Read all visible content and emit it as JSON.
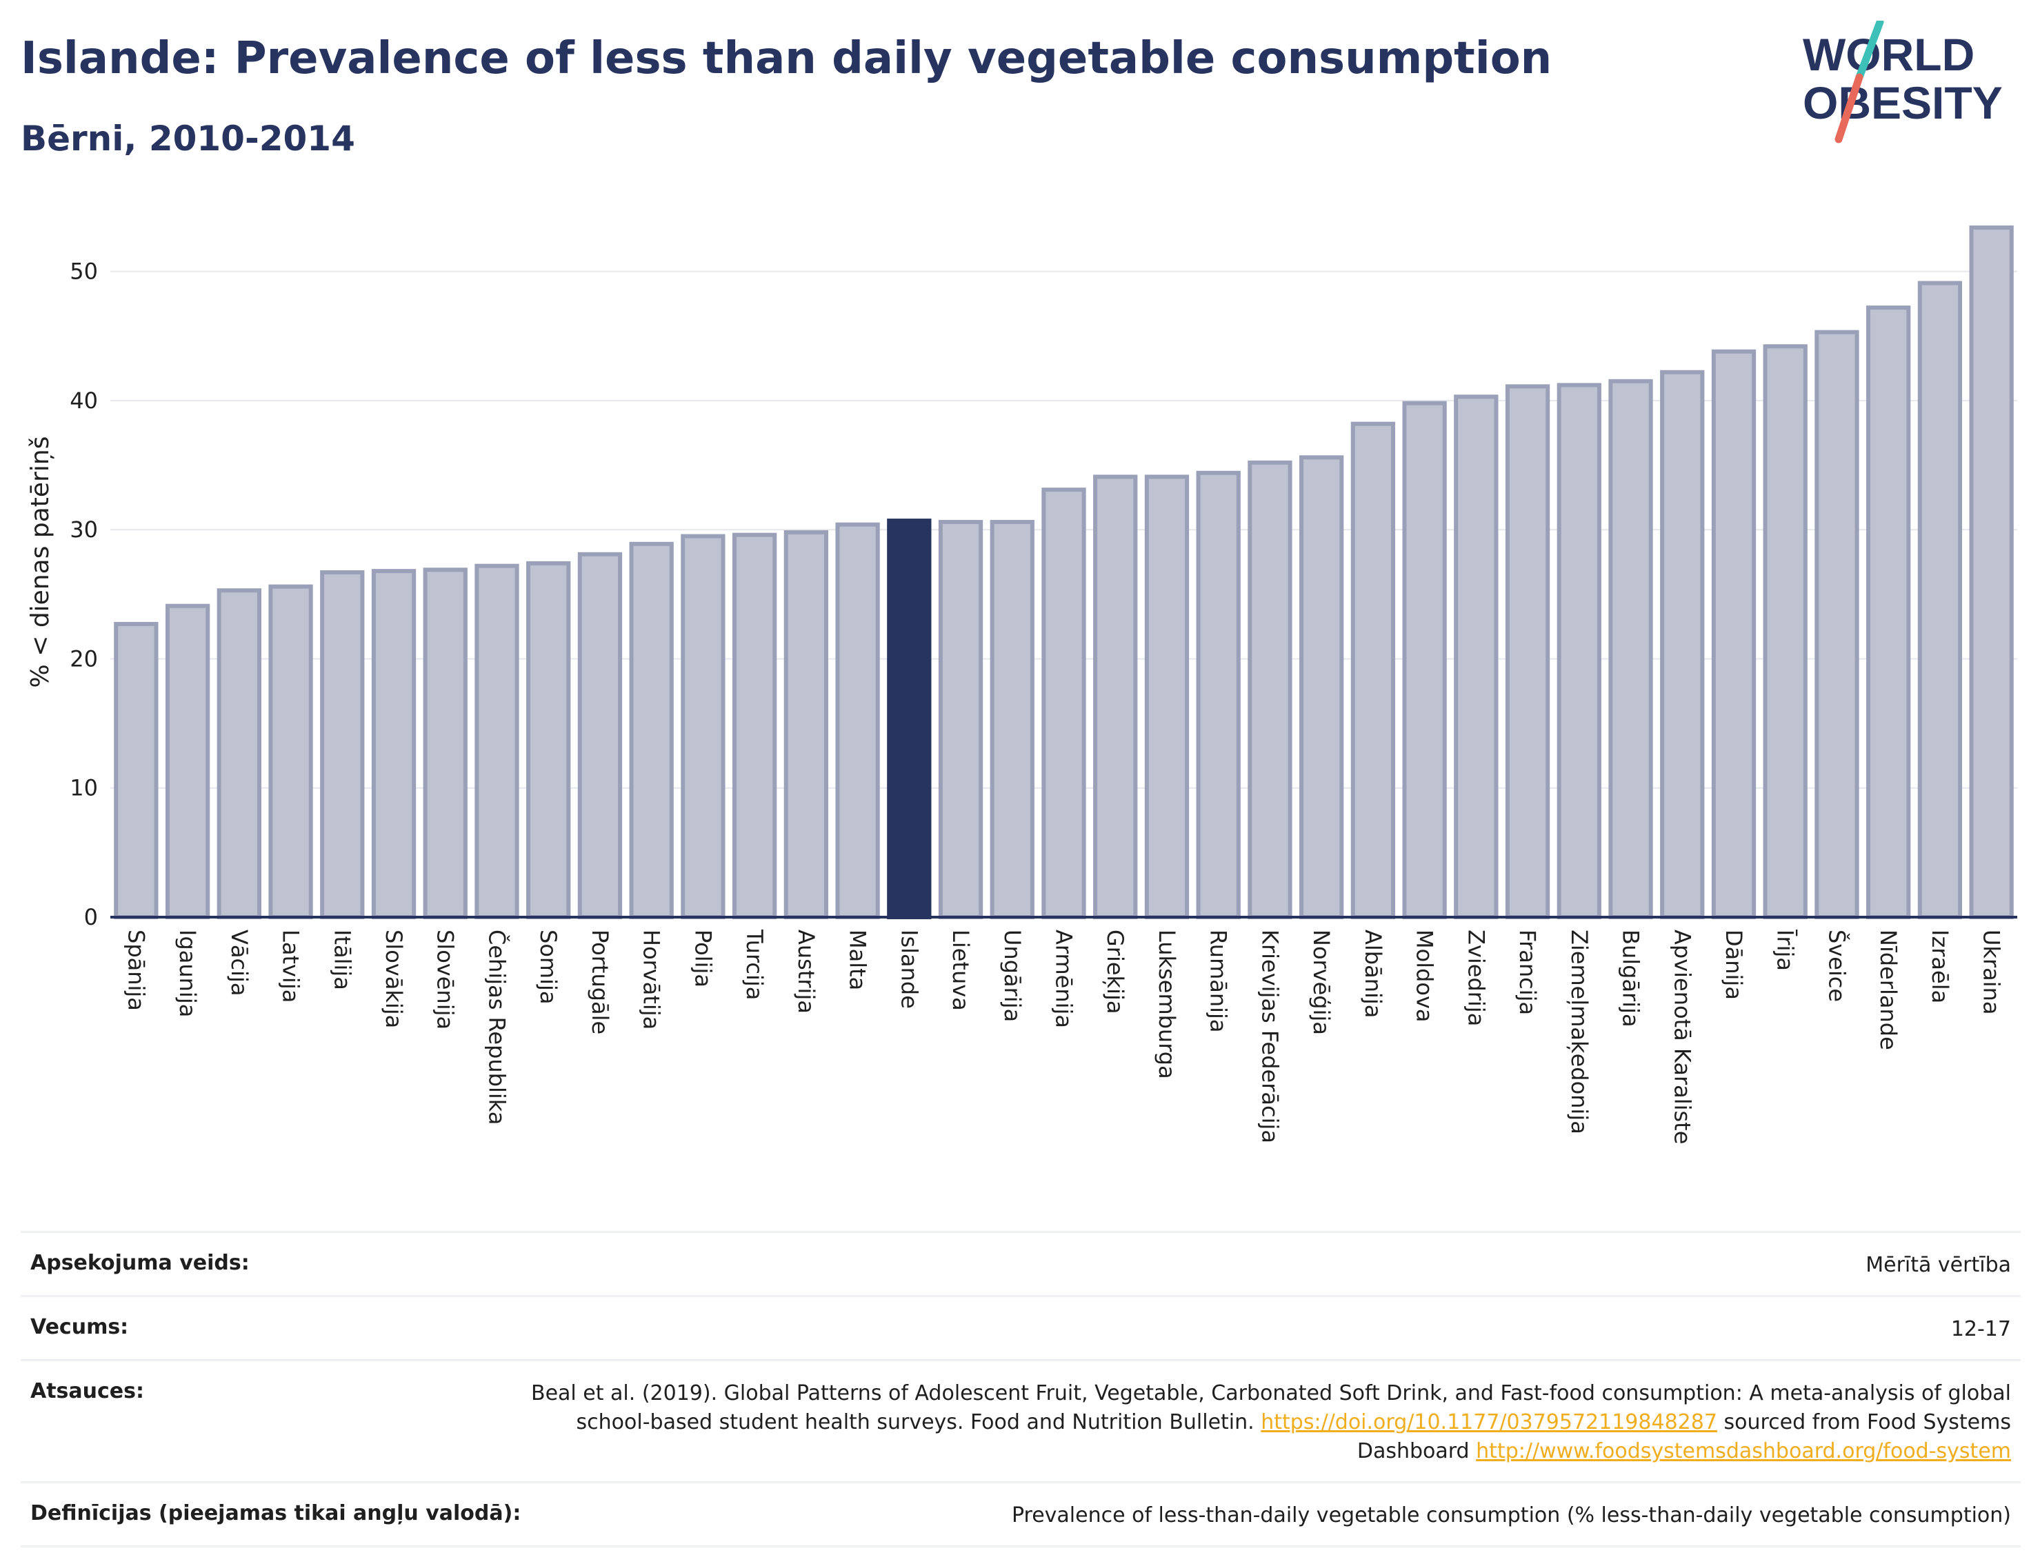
{
  "header": {
    "title": "Islande: Prevalence of less than daily vegetable consumption",
    "subtitle": "Bērni, 2010-2014"
  },
  "logo": {
    "line1": "WORLD",
    "line2": "OBESITY",
    "colors": {
      "text": "#283460",
      "slash_top": "#3cc0b8",
      "slash_bottom": "#e8685a"
    }
  },
  "chart_data": {
    "type": "bar",
    "ylabel": "% < dienas patēriņš",
    "ylim": [
      0,
      55
    ],
    "yticks": [
      0,
      10,
      20,
      30,
      40,
      50
    ],
    "grid": true,
    "highlight": "Islande",
    "colors": {
      "bar": "#bfc3d1",
      "bar_border": "#9aa0b8",
      "highlight": "#283460"
    },
    "categories": [
      "Spānija",
      "Igaunija",
      "Vācija",
      "Latvija",
      "Itālija",
      "Slovākija",
      "Slovēnija",
      "Čehijas Republika",
      "Somija",
      "Portugāle",
      "Horvātija",
      "Polija",
      "Turcija",
      "Austrija",
      "Malta",
      "Islande",
      "Lietuva",
      "Ungārija",
      "Armēnija",
      "Grieķija",
      "Luksemburga",
      "Rumānija",
      "Krievijas Federācija",
      "Norvēģija",
      "Albānija",
      "Moldova",
      "Zviedrija",
      "Francija",
      "Ziemeļmaķedonija",
      "Bulgārija",
      "Apvienotā Karaliste",
      "Dānija",
      "Īrija",
      "Šveice",
      "Nīderlande",
      "Izraēla",
      "Ukraina"
    ],
    "values": [
      22.7,
      24.1,
      25.3,
      25.6,
      26.7,
      26.8,
      26.9,
      27.2,
      27.4,
      28.1,
      28.9,
      29.5,
      29.6,
      29.8,
      30.4,
      30.7,
      30.6,
      30.6,
      33.1,
      34.1,
      34.1,
      34.4,
      35.2,
      35.6,
      38.2,
      39.8,
      40.3,
      41.1,
      41.2,
      41.5,
      42.2,
      43.8,
      44.2,
      45.3,
      47.2,
      49.1,
      53.4
    ]
  },
  "meta": {
    "rows": [
      {
        "label": "Apsekojuma veids:",
        "value": "Mērītā vērtība"
      },
      {
        "label": "Vecums:",
        "value": "12-17"
      },
      {
        "label": "Definīcijas (pieejamas tikai angļu valodā):",
        "value": "Prevalence of less-than-daily vegetable consumption (% less-than-daily vegetable consumption)"
      }
    ],
    "references": {
      "label": "Atsauces:",
      "text1": "Beal et al. (2019). Global Patterns of Adolescent Fruit, Vegetable, Carbonated Soft Drink, and Fast-food consumption: A meta-analysis of global school-based student health surveys. Food and Nutrition Bulletin.",
      "link1": "https://doi.org/10.1177/0379572119848287",
      "text2": "sourced from Food Systems Dashboard",
      "link2": "http://www.foodsystemsdashboard.org/food-system"
    }
  }
}
